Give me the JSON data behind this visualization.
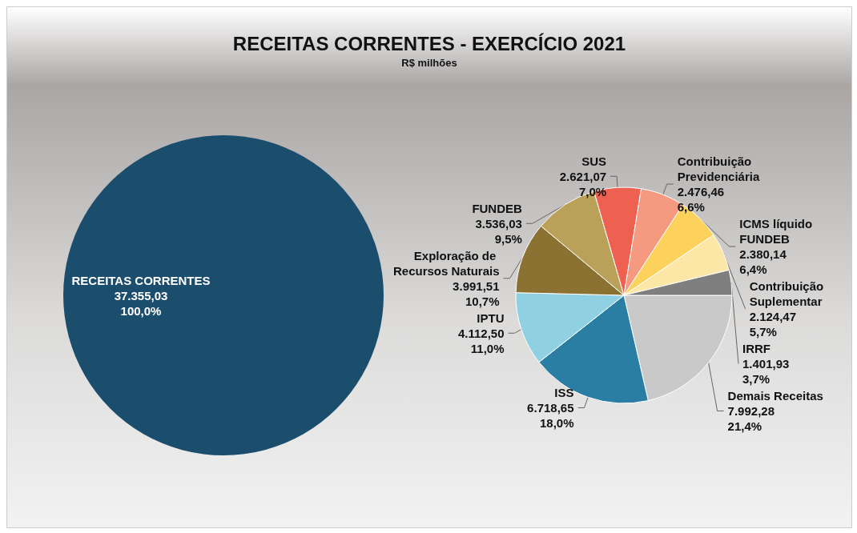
{
  "chart_data": [
    {
      "type": "pie",
      "title": "RECEITAS CORRENTES - EXERCÍCIO 2021",
      "subtitle": "R$ milhões",
      "categories": [
        "RECEITAS CORRENTES"
      ],
      "values": [
        37355.03
      ],
      "value_labels": [
        "37.355,03\n100,0%"
      ],
      "colors": [
        "#1b4d6d"
      ]
    },
    {
      "type": "pie",
      "categories": [
        "Demais Receitas",
        "ISS",
        "IPTU",
        "Exploração de Recursos Naturais",
        "FUNDEB",
        "SUS",
        "Contribuição Previdenciária",
        "ICMS líquido FUNDEB",
        "Contribuição Suplementar",
        "IRRF"
      ],
      "values": [
        7992.28,
        6718.65,
        4112.5,
        3991.51,
        3536.03,
        2621.07,
        2476.46,
        2380.14,
        2124.47,
        1401.93
      ],
      "value_labels": [
        "7.992,28\n21,4%",
        "6.718,65\n18,0%",
        "4.112,50\n11,0%",
        "3.991,51\n10,7%",
        "3.536,03\n9,5%",
        "2.621,07\n7,0%",
        "2.476,46\n6,6%",
        "2.380,14\n6,4%",
        "2.124,47\n5,7%",
        "1.401,93\n3,7%"
      ],
      "colors": [
        "#c9c9c9",
        "#2b7ea3",
        "#8fd0e3",
        "#8c7232",
        "#b9a15a",
        "#ee6150",
        "#f59a80",
        "#fdd25c",
        "#fde7a6",
        "#7f7f7f"
      ]
    }
  ]
}
